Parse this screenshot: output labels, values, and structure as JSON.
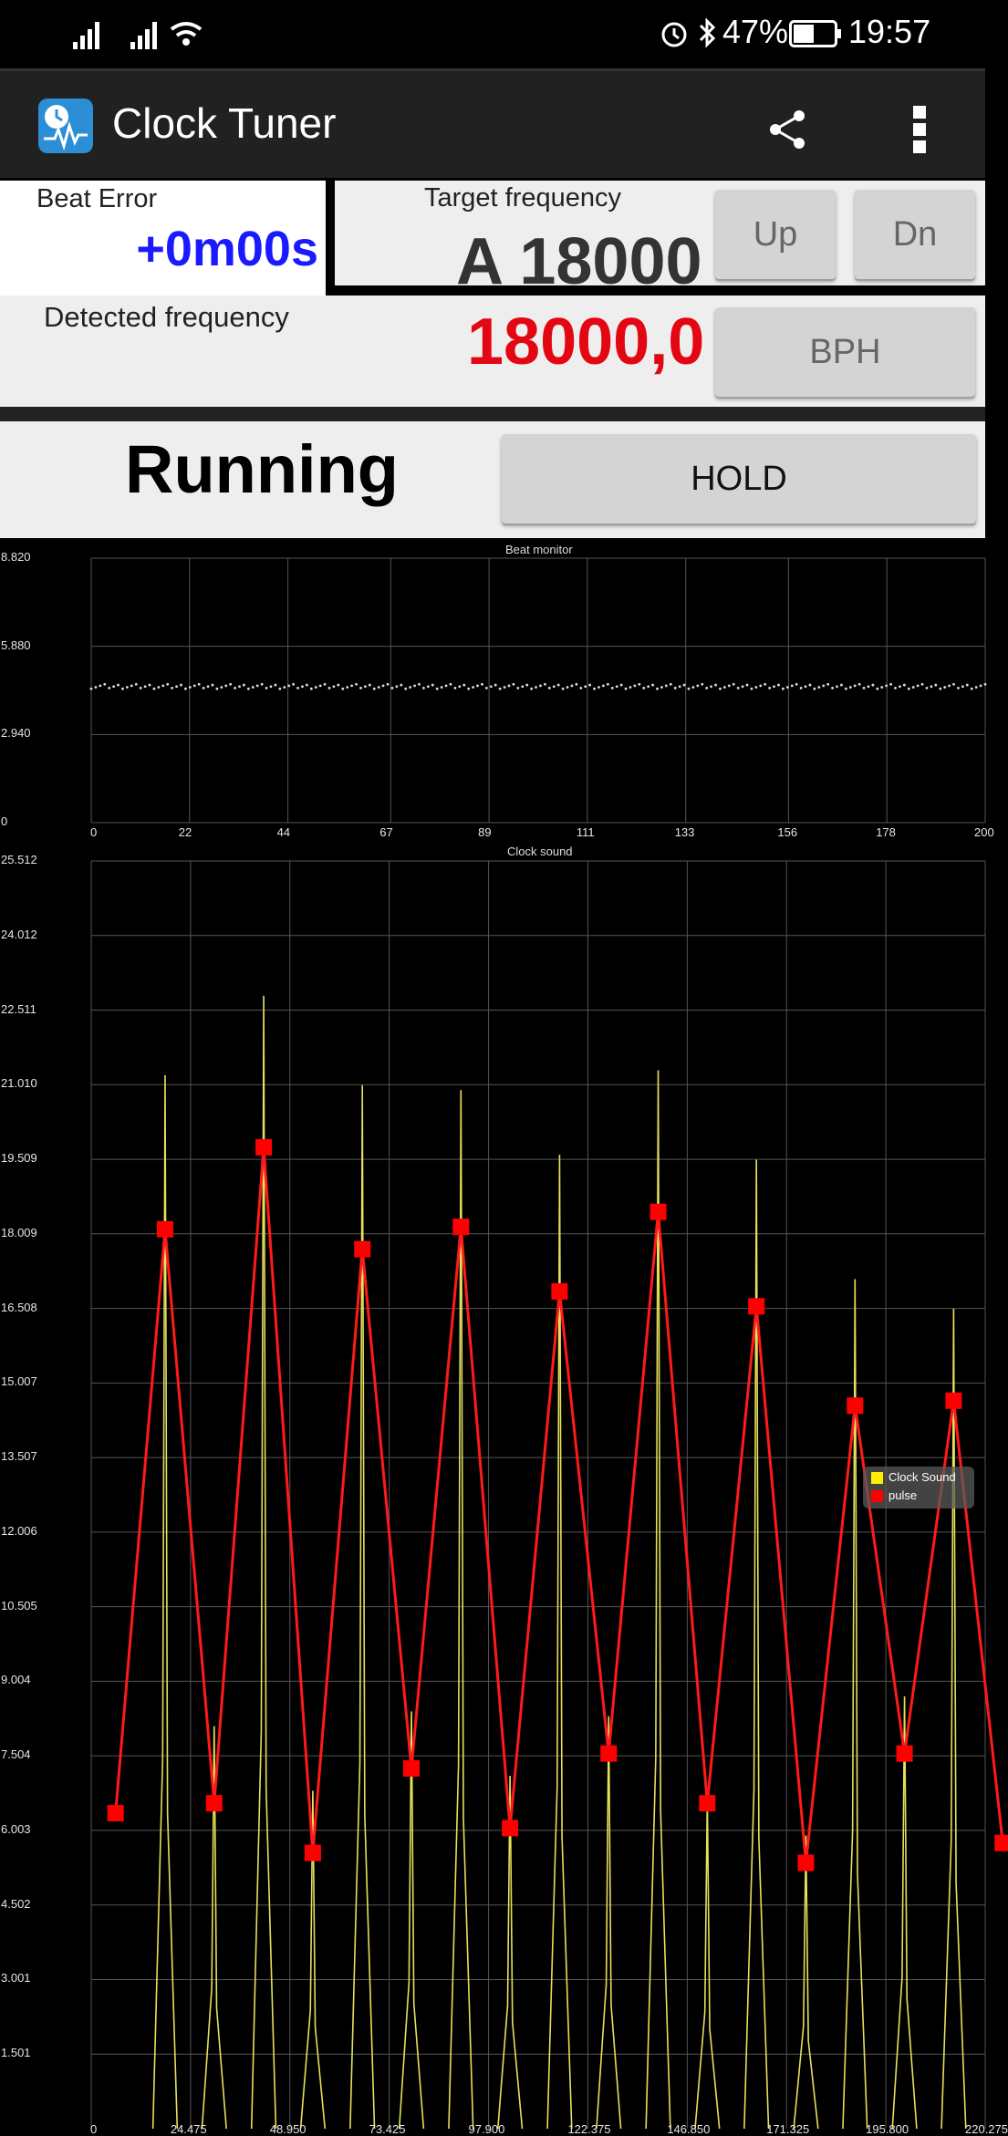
{
  "status_bar": {
    "battery": "47%",
    "time": "19:57"
  },
  "app": {
    "title": "Clock Tuner"
  },
  "beat_error": {
    "label": "Beat Error",
    "value": "+0m00s"
  },
  "target": {
    "label": "Target frequency",
    "value": "A 18000",
    "up": "Up",
    "down": "Dn"
  },
  "detected": {
    "label": "Detected frequency",
    "value": "18000,0",
    "unit_button": "BPH"
  },
  "run": {
    "state": "Running",
    "hold": "HOLD"
  },
  "colors": {
    "accent_blue": "#1a1aff",
    "accent_red": "#e30613",
    "pulse": "#ff0000",
    "sound": "#e6e05a"
  },
  "chart_data": [
    {
      "type": "scatter",
      "title": "Beat monitor",
      "y_ticks": [
        "8.820",
        "5.880",
        "2.940",
        "0"
      ],
      "x_ticks": [
        "0",
        "22",
        "44",
        "67",
        "89",
        "111",
        "133",
        "156",
        "178",
        "200"
      ],
      "ylim": [
        0,
        8.82
      ],
      "xlim": [
        0,
        200
      ],
      "series": [
        {
          "values_y": 4.54,
          "count": 200
        }
      ]
    },
    {
      "type": "line",
      "title": "Clock sound",
      "y_ticks": [
        "25.512",
        "24.012",
        "22.511",
        "21.010",
        "19.509",
        "18.009",
        "16.508",
        "15.007",
        "13.507",
        "12.006",
        "10.505",
        "9.004",
        "7.504",
        "6.003",
        "4.502",
        "3.001",
        "1.501"
      ],
      "x_ticks": [
        "0",
        "24.475",
        "48.950",
        "73.425",
        "97.900",
        "122.375",
        "146.850",
        "171.325",
        "195.800",
        "220.275"
      ],
      "ylim": [
        0,
        25.512
      ],
      "xlim": [
        0,
        220.275
      ],
      "legend": {
        "position": "right",
        "entries": [
          "Clock Sound",
          "pulse"
        ]
      },
      "series": [
        {
          "name": "pulse",
          "x": [
            6,
            18.2,
            30.3,
            42.5,
            54.6,
            66.8,
            78.9,
            91.1,
            103.2,
            115.4,
            127.5,
            139.7,
            151.8,
            163.9,
            176.1,
            188.2,
            200.4,
            212.5,
            224.6
          ],
          "y": [
            6.35,
            18.1,
            6.55,
            19.75,
            5.55,
            17.7,
            7.25,
            18.15,
            6.05,
            16.85,
            7.55,
            18.45,
            6.55,
            16.55,
            5.35,
            14.55,
            7.55,
            14.65,
            5.75
          ]
        },
        {
          "name": "Clock Sound",
          "peaks_x": [
            18.2,
            30.3,
            42.5,
            54.6,
            66.8,
            78.9,
            91.1,
            103.2,
            115.4,
            127.5,
            139.7,
            151.8,
            163.9,
            176.1,
            188.2,
            200.4,
            212.5
          ],
          "peaks_y": [
            21.2,
            8.1,
            22.8,
            6.8,
            21.0,
            8.4,
            20.9,
            7.1,
            19.6,
            8.3,
            21.3,
            6.7,
            19.5,
            5.9,
            17.1,
            8.7,
            16.5
          ]
        }
      ]
    }
  ]
}
